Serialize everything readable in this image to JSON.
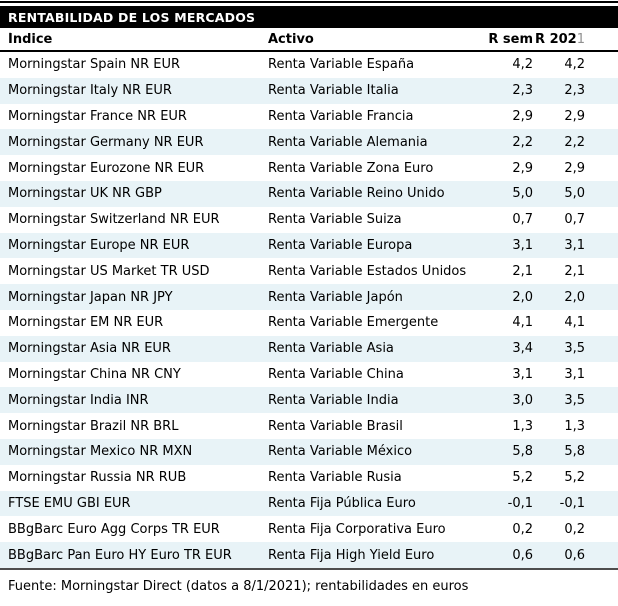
{
  "title_bar": {
    "title": "RENTABILIDAD DE LOS MERCADOS"
  },
  "header_display": {
    "r2021_main": "R 202",
    "r2021_suffix": "1"
  },
  "footer": {
    "source": "Fuente: Morningstar Direct (datos a 8/1/2021); rentabilidades en euros"
  },
  "colors": {
    "title_bg": "#000000",
    "title_text": "#ffffff",
    "alt_row": "#e8f3f7",
    "suffix_gray": "#909090",
    "bottom_rule": "#4d4d4d"
  },
  "chart_data": {
    "type": "table",
    "title": "RENTABILIDAD DE LOS MERCADOS",
    "columns": [
      "Índice",
      "Activo",
      "R sem",
      "R 2021"
    ],
    "rows": [
      [
        "Morningstar Spain NR EUR",
        "Renta Variable España",
        "4,2",
        "4,2"
      ],
      [
        "Morningstar Italy NR EUR",
        "Renta Variable Italia",
        "2,3",
        "2,3"
      ],
      [
        "Morningstar France NR EUR",
        "Renta Variable Francia",
        "2,9",
        "2,9"
      ],
      [
        "Morningstar Germany NR EUR",
        "Renta Variable Alemania",
        "2,2",
        "2,2"
      ],
      [
        "Morningstar Eurozone NR EUR",
        "Renta Variable Zona Euro",
        "2,9",
        "2,9"
      ],
      [
        "Morningstar UK NR GBP",
        "Renta Variable Reino Unido",
        "5,0",
        "5,0"
      ],
      [
        "Morningstar Switzerland NR EUR",
        "Renta Variable Suiza",
        "0,7",
        "0,7"
      ],
      [
        "Morningstar Europe NR EUR",
        "Renta Variable Europa",
        "3,1",
        "3,1"
      ],
      [
        "Morningstar US Market TR USD",
        "Renta Variable Estados Unidos",
        "2,1",
        "2,1"
      ],
      [
        "Morningstar Japan NR JPY",
        "Renta Variable Japón",
        "2,0",
        "2,0"
      ],
      [
        "Morningstar EM NR EUR",
        "Renta Variable Emergente",
        "4,1",
        "4,1"
      ],
      [
        "Morningstar Asia NR EUR",
        "Renta Variable Asia",
        "3,4",
        "3,5"
      ],
      [
        "Morningstar China NR CNY",
        "Renta Variable China",
        "3,1",
        "3,1"
      ],
      [
        "Morningstar India INR",
        "Renta Variable India",
        "3,0",
        "3,5"
      ],
      [
        "Morningstar Brazil NR BRL",
        "Renta Variable Brasil",
        "1,3",
        "1,3"
      ],
      [
        "Morningstar Mexico NR MXN",
        "Renta Variable México",
        "5,8",
        "5,8"
      ],
      [
        "Morningstar Russia NR RUB",
        "Renta Variable Rusia",
        "5,2",
        "5,2"
      ],
      [
        "FTSE EMU GBI EUR",
        "Renta Fija Pública Euro",
        "-0,1",
        "-0,1"
      ],
      [
        "BBgBarc Euro Agg Corps TR EUR",
        "Renta Fija Corporativa Euro",
        "0,2",
        "0,2"
      ],
      [
        "BBgBarc Pan Euro HY Euro TR EUR",
        "Renta Fija High Yield Euro",
        "0,6",
        "0,6"
      ]
    ],
    "footer": "Fuente: Morningstar Direct (datos a 8/1/2021); rentabilidades en euros"
  }
}
